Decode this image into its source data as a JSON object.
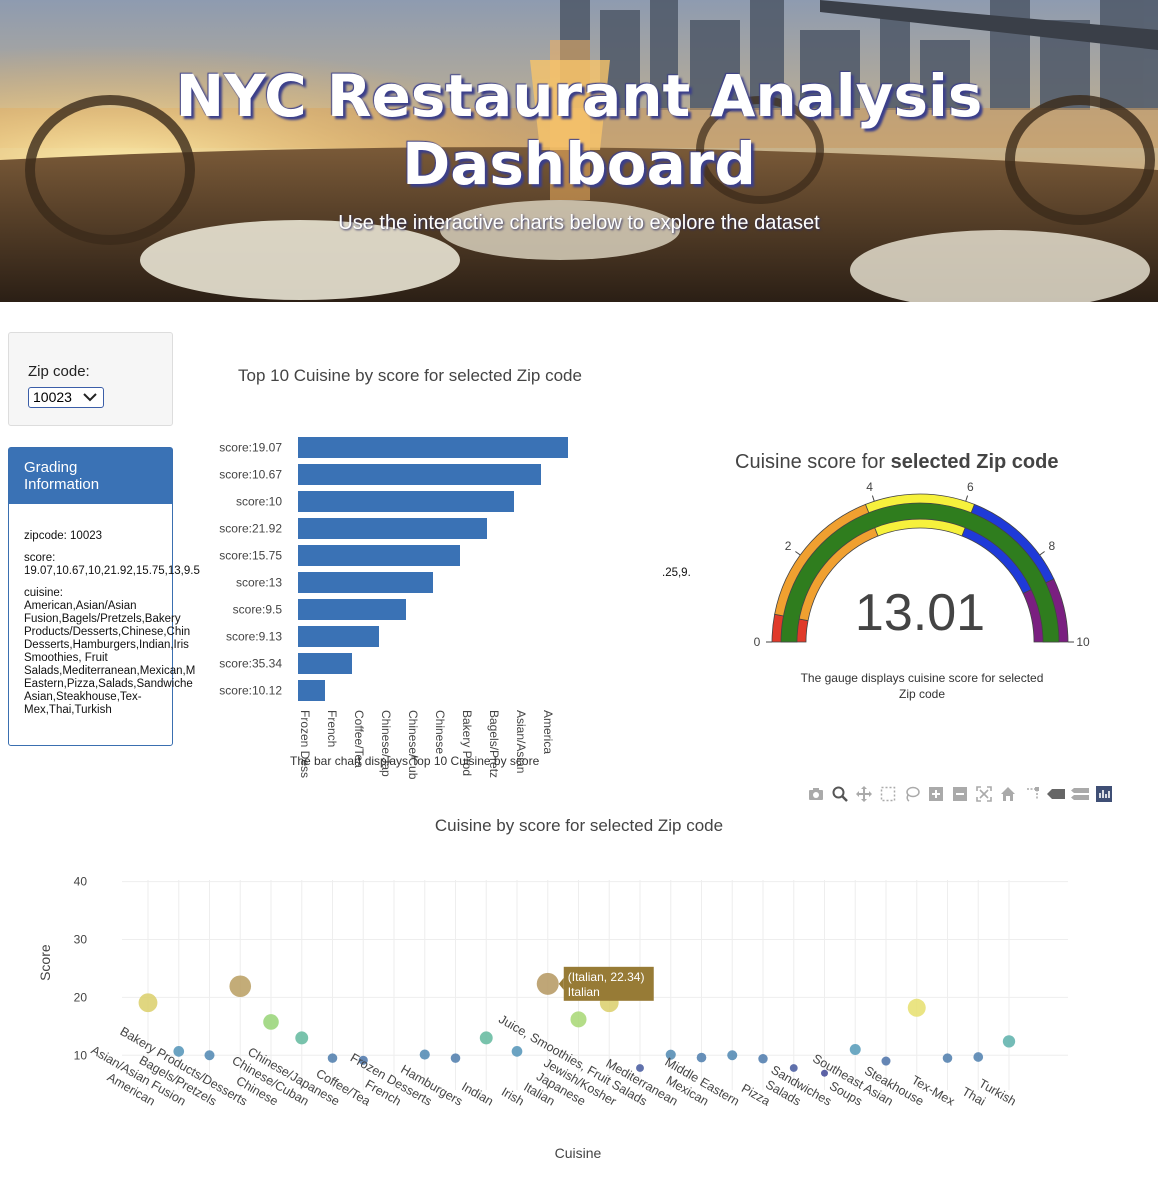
{
  "hero": {
    "title_line1": "NYC Restaurant Analysis",
    "title_line2": "Dashboard",
    "subtitle": "Use the interactive charts below to explore the dataset"
  },
  "zip_filter": {
    "label": "Zip code:",
    "selected": "10023"
  },
  "grading": {
    "header_line1": "Grading",
    "header_line2": "Information",
    "zipcode_line": "zipcode: 10023",
    "score_label": "score:",
    "score_value": "19.07,10.67,10,21.92,15.75,13,9.5",
    "score_overflow": ".25,9.",
    "cuisine_label": "cuisine:",
    "cuisine_lines": [
      "American,Asian/Asian",
      "Fusion,Bagels/Pretzels,Bakery",
      "Products/Desserts,Chinese,Chin",
      "Desserts,Hamburgers,Indian,Iris",
      "Smoothies, Fruit",
      "Salads,Mediterranean,Mexican,M",
      "Eastern,Pizza,Salads,Sandwiche",
      "Asian,Steakhouse,Tex-",
      "Mex,Thai,Turkish"
    ]
  },
  "bar_chart_text": {
    "title": "Top 10 Cuisine by score for selected Zip code",
    "caption": "The bar chart displays Top 10 Cuisine by score"
  },
  "gauge_text": {
    "title_plain": "Cuisine score for ",
    "title_bold": "selected Zip code",
    "value_text": "13.01",
    "caption": "The gauge displays cuisine score for selected Zip code"
  },
  "toolbar_icons": [
    "camera-icon",
    "zoom-icon",
    "pan-icon",
    "box-select-icon",
    "lasso-icon",
    "zoom-in-icon",
    "zoom-out-icon",
    "autoscale-icon",
    "home-icon",
    "spike-lines-icon",
    "hover-closest-icon",
    "hover-compare-icon",
    "plotly-logo-icon"
  ],
  "scatter_text": {
    "title": "Cuisine by score for selected Zip code",
    "tooltip_line1": "(Italian, 22.34)",
    "tooltip_line2": "Italian"
  },
  "colors": {
    "bar": "#3a72b5",
    "panel_header": "#3a72b5",
    "tooltip": "#977b36"
  },
  "chart_data": [
    {
      "type": "bar",
      "orientation": "vertical-bars-shown-horizontally",
      "title": "Top 10 Cuisine by score for selected Zip code",
      "y_tick_labels": [
        "score:19.07",
        "score:10.67",
        "score:10",
        "score:21.92",
        "score:15.75",
        "score:13",
        "score:9.5",
        "score:9.13",
        "score:35.34",
        "score:10.12"
      ],
      "x_tick_labels": [
        "Frozen Dess",
        "French",
        "Coffee/Tea",
        "Chinese/Jap",
        "Chinese/Cub",
        "Chinese",
        "Bakery Prod",
        "Bagels/Pretz",
        "Asian/Asian",
        "America"
      ],
      "bar_rank": [
        10,
        9,
        8,
        7,
        6,
        5,
        4,
        3,
        2,
        1
      ]
    },
    {
      "type": "gauge",
      "title": "Cuisine score for selected Zip code",
      "value": 13.01,
      "range": [
        0,
        10
      ],
      "ticks": [
        0,
        2,
        4,
        6,
        8,
        10
      ],
      "steps": [
        {
          "range": [
            0,
            0.6
          ],
          "color": "#e03a2a"
        },
        {
          "range": [
            0.6,
            3.8
          ],
          "color": "#f0a030"
        },
        {
          "range": [
            3.8,
            6.2
          ],
          "color": "#f6f13c"
        },
        {
          "range": [
            6.2,
            8.6
          ],
          "color": "#1f3ad8"
        },
        {
          "range": [
            8.6,
            10
          ],
          "color": "#7a1f80"
        }
      ],
      "bar_color": "#2f7d1e"
    },
    {
      "type": "scatter",
      "title": "Cuisine by score for selected Zip code",
      "xlabel": "Cuisine",
      "ylabel": "Score",
      "ylim": [
        4,
        42
      ],
      "yticks": [
        10,
        20,
        30,
        40
      ],
      "categories": [
        "American",
        "Asian/Asian Fusion",
        "Bagels/Pretzels",
        "Bakery Products/Desserts",
        "Chinese",
        "Chinese/Cuban",
        "Chinese/Japanese",
        "Coffee/Tea",
        "French",
        "Frozen Desserts",
        "Hamburgers",
        "Indian",
        "Irish",
        "Italian",
        "Japanese",
        "Jewish/Kosher",
        "Juice, Smoothies, Fruit Salads",
        "Mediterranean",
        "Mexican",
        "Middle Eastern",
        "Pizza",
        "Salads",
        "Sandwiches",
        "Soups",
        "Southeast Asian",
        "Steakhouse",
        "Tex-Mex",
        "Thai",
        "Turkish"
      ],
      "values": [
        19.07,
        10.67,
        10,
        21.92,
        15.75,
        13,
        9.5,
        9.13,
        null,
        10.12,
        9.5,
        13,
        10.67,
        22.34,
        16.2,
        19.07,
        7.8,
        10.1,
        9.6,
        10,
        9.4,
        7.8,
        6.9,
        11,
        9,
        18.2,
        9.5,
        9.7,
        12.4
      ]
    }
  ]
}
